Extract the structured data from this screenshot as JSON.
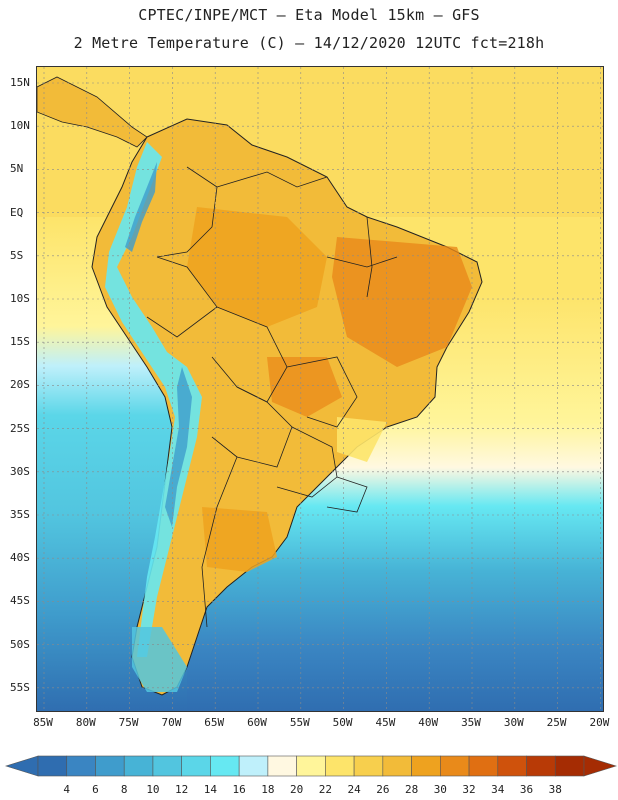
{
  "header": {
    "line1": "CPTEC/INPE/MCT –  Eta Model 15km – GFS",
    "line2": "2 Metre Temperature (C) – 14/12/2020 12UTC fct=218h"
  },
  "map": {
    "region": "South America",
    "variable": "2 Metre Temperature",
    "units": "C",
    "lat_labels": [
      "15N",
      "10N",
      "5N",
      "EQ",
      "5S",
      "10S",
      "15S",
      "20S",
      "25S",
      "30S",
      "35S",
      "40S",
      "45S",
      "50S",
      "55S"
    ],
    "lon_labels": [
      "85W",
      "80W",
      "75W",
      "70W",
      "65W",
      "60W",
      "55W",
      "50W",
      "45W",
      "40W",
      "35W",
      "30W",
      "25W",
      "20W"
    ]
  },
  "legend": {
    "ticks": [
      "4",
      "6",
      "8",
      "10",
      "12",
      "14",
      "16",
      "18",
      "20",
      "22",
      "24",
      "26",
      "28",
      "30",
      "32",
      "34",
      "36",
      "38"
    ],
    "colors": [
      "#2f6db0",
      "#3a85c2",
      "#3f9ccc",
      "#47b3d6",
      "#52c5df",
      "#5bd6e8",
      "#66e8f2",
      "#bff0fb",
      "#fff8e1",
      "#fff59a",
      "#fde46a",
      "#f7cf4d",
      "#f2bb39",
      "#eea21f",
      "#e98a1a",
      "#e06f12",
      "#cf520c",
      "#b83a06",
      "#a52c03"
    ]
  }
}
